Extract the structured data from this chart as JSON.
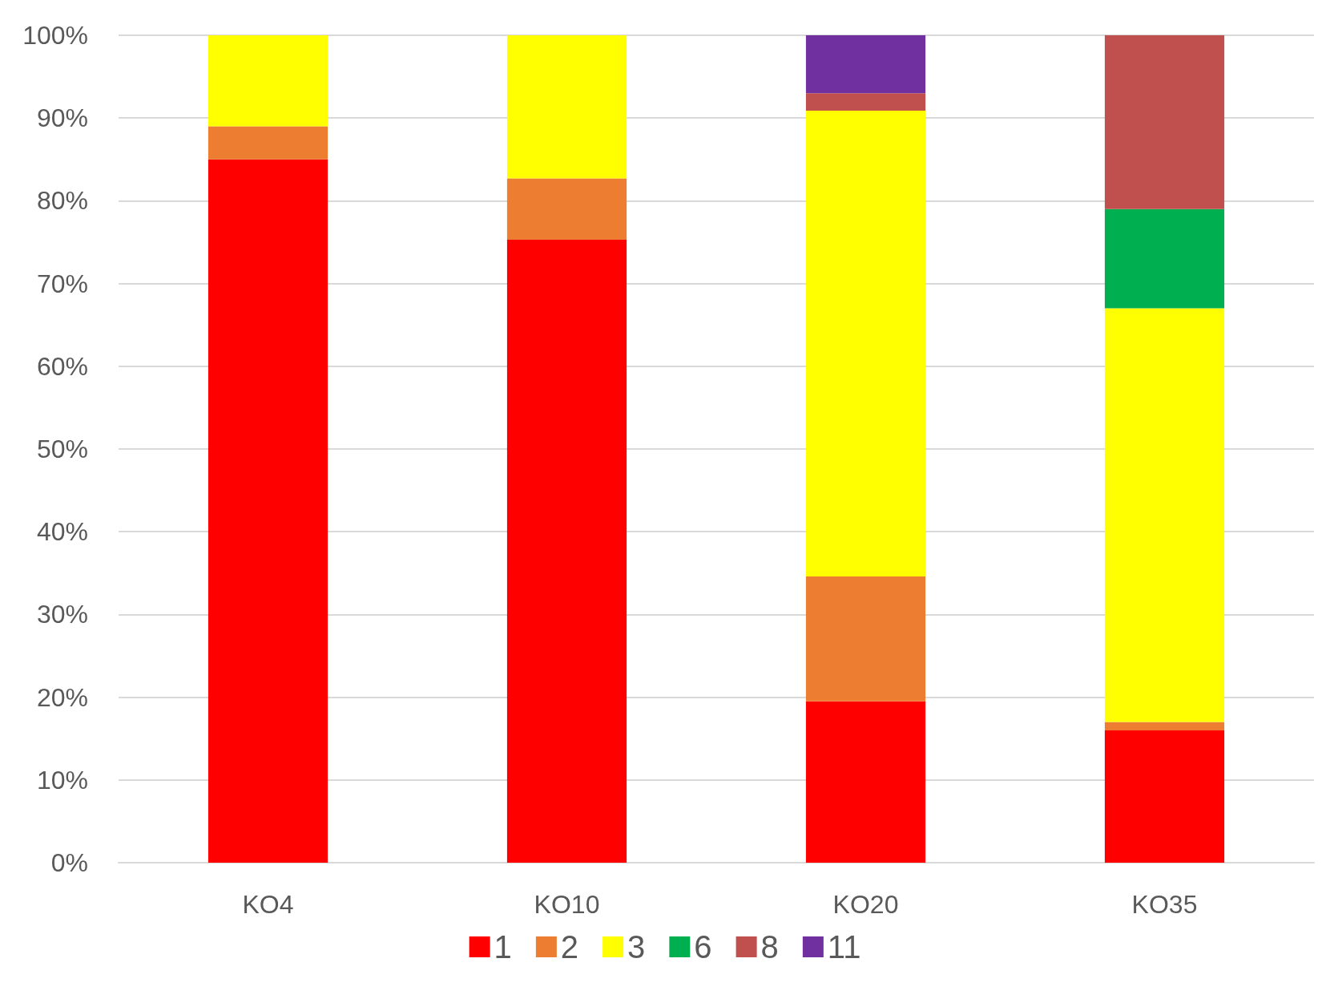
{
  "chart_data": {
    "type": "bar",
    "stacked": true,
    "categories": [
      "KO4",
      "KO10",
      "KO20",
      "KO35"
    ],
    "series": [
      {
        "name": "1",
        "color": "#ff0000",
        "values": [
          85,
          75.3,
          19.5,
          16
        ]
      },
      {
        "name": "2",
        "color": "#ed7d31",
        "values": [
          4,
          7.4,
          15.1,
          1
        ]
      },
      {
        "name": "3",
        "color": "#ffff00",
        "values": [
          11,
          17.3,
          56.3,
          50
        ]
      },
      {
        "name": "6",
        "color": "#00b050",
        "values": [
          null,
          null,
          null,
          12
        ]
      },
      {
        "name": "8",
        "color": "#c0504d",
        "values": [
          null,
          null,
          2.1,
          21
        ]
      },
      {
        "name": "11",
        "color": "#7030a0",
        "values": [
          null,
          null,
          7,
          null
        ]
      }
    ],
    "ylim": [
      0,
      100
    ],
    "yticks": [
      {
        "value": 0,
        "label": "0%"
      },
      {
        "value": 10,
        "label": "10%"
      },
      {
        "value": 20,
        "label": "20%"
      },
      {
        "value": 30,
        "label": "30%"
      },
      {
        "value": 40,
        "label": "40%"
      },
      {
        "value": 50,
        "label": "50%"
      },
      {
        "value": 60,
        "label": "60%"
      },
      {
        "value": 70,
        "label": "70%"
      },
      {
        "value": 80,
        "label": "80%"
      },
      {
        "value": 90,
        "label": "90%"
      },
      {
        "value": 100,
        "label": "100%"
      }
    ],
    "grid": "y",
    "legend": "bottom"
  }
}
